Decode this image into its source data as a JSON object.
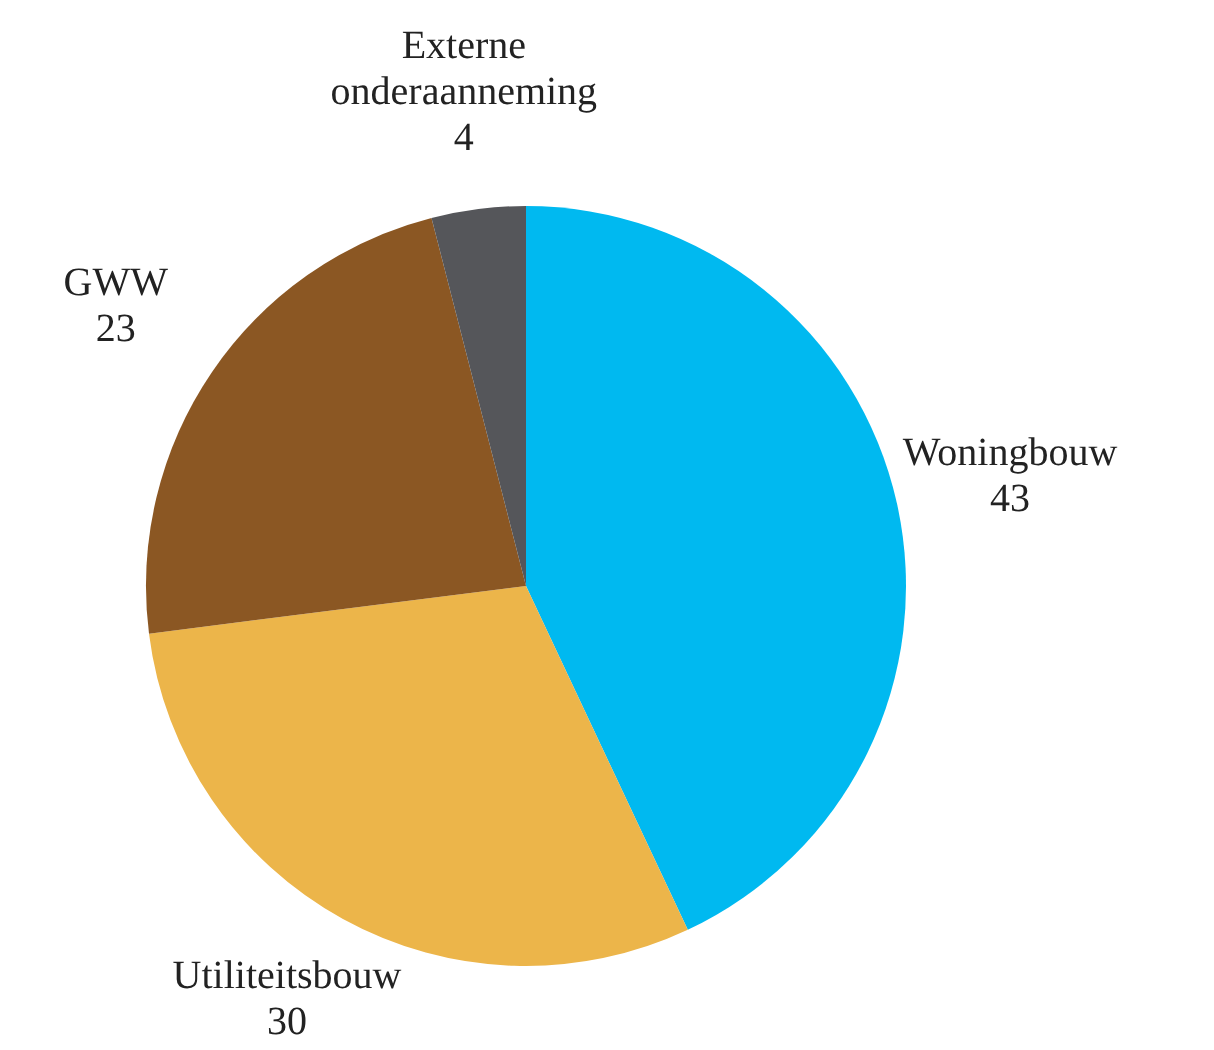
{
  "chart_data": {
    "type": "pie",
    "categories": [
      "Woningbouw",
      "Utiliteitsbouw",
      "GWW",
      "Externe onderaanneming"
    ],
    "values": [
      43,
      30,
      23,
      4
    ],
    "colors": [
      "#00b9f0",
      "#ecb54a",
      "#8b5723",
      "#55565a"
    ],
    "data_labels": true,
    "legend": false
  }
}
